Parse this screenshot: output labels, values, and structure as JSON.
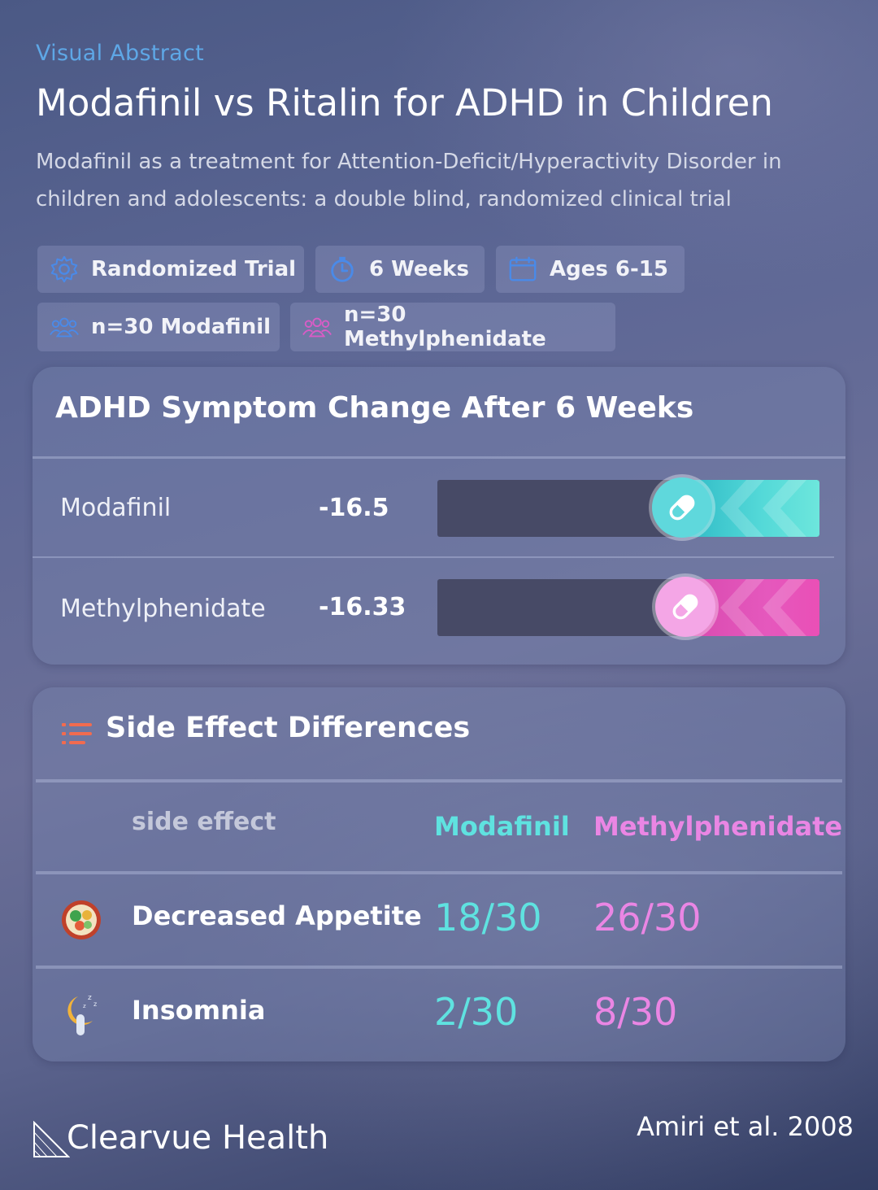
{
  "header": {
    "kicker": "Visual Abstract",
    "title": "Modafinil vs Ritalin for ADHD in Children",
    "subtitle": "Modafinil as a treatment for Attention-Deficit/Hyperactivity Disorder in children and adolescents: a double blind, randomized clinical trial"
  },
  "tags": [
    {
      "icon": "gear-icon",
      "label": "Randomized Trial"
    },
    {
      "icon": "stopwatch-icon",
      "label": "6 Weeks"
    },
    {
      "icon": "calendar-icon",
      "label": "Ages 6-15"
    },
    {
      "icon": "group-icon",
      "label": "n=30 Modafinil"
    },
    {
      "icon": "group-icon",
      "label": "n=30 Methylphenidate"
    }
  ],
  "symptom_card": {
    "title": "ADHD Symptom Change After 6 Weeks",
    "rows": [
      {
        "label": "Modafinil",
        "value": "-16.5",
        "color": "#5fe2e0"
      },
      {
        "label": "Methylphenidate",
        "value": "-16.33",
        "color": "#ea5fbf"
      }
    ]
  },
  "side_effects": {
    "title": "Side Effect Differences",
    "col_side_effect": "side effect",
    "col_modafinil": "Modafinil",
    "col_methylphenidate": "Methylphenidate",
    "rows": [
      {
        "icon": "food-bowl-icon",
        "label": "Decreased Appetite",
        "modafinil": "18/30",
        "methylphenidate": "26/30"
      },
      {
        "icon": "sleeping-moon-icon",
        "label": "Insomnia",
        "modafinil": "2/30",
        "methylphenidate": "8/30"
      }
    ]
  },
  "footer": {
    "brand": "Clearvue Health",
    "citation": "Amiri et al. 2008"
  },
  "colors": {
    "accent_blue": "#5ea7e6",
    "modafinil": "#5fe2e0",
    "methylphenidate": "#ea86e4",
    "list_icon": "#f26b4f"
  }
}
